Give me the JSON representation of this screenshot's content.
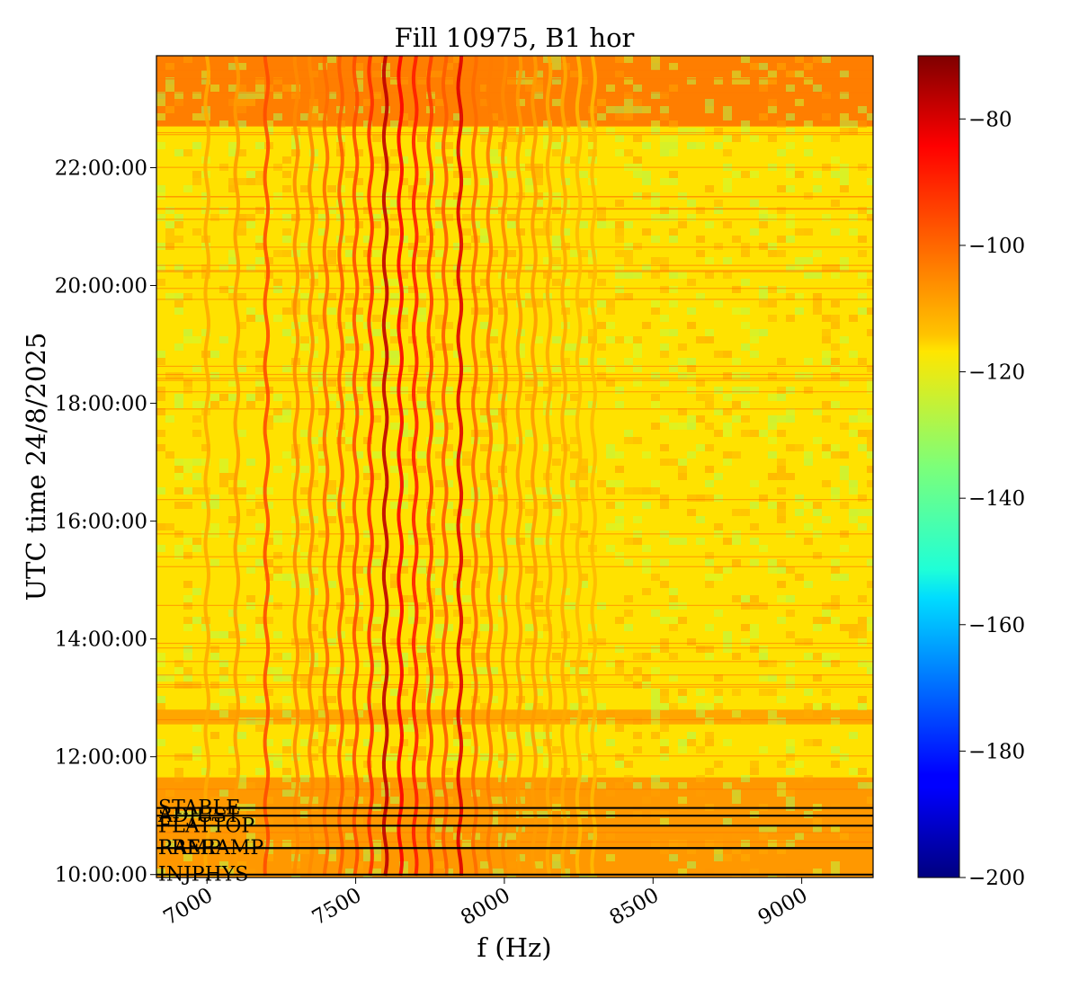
{
  "chart_data": {
    "type": "heatmap",
    "title": "Fill 10975, B1 hor",
    "xlabel": "f (Hz)",
    "ylabel": "UTC time 24/8/2025",
    "xlim": [
      6830,
      9240
    ],
    "ylim_hours": [
      9.95,
      23.9
    ],
    "x_ticks": [
      {
        "value": 7000,
        "label": "7000"
      },
      {
        "value": 7500,
        "label": "7500"
      },
      {
        "value": 8000,
        "label": "8000"
      },
      {
        "value": 8500,
        "label": "8500"
      },
      {
        "value": 9000,
        "label": "9000"
      }
    ],
    "y_ticks": [
      {
        "value": 10,
        "label": "10:00:00"
      },
      {
        "value": 12,
        "label": "12:00:00"
      },
      {
        "value": 14,
        "label": "14:00:00"
      },
      {
        "value": 16,
        "label": "16:00:00"
      },
      {
        "value": 18,
        "label": "18:00:00"
      },
      {
        "value": 20,
        "label": "20:00:00"
      },
      {
        "value": 22,
        "label": "22:00:00"
      }
    ],
    "colorbar": {
      "colormap": "jet",
      "range": [
        -200,
        -70
      ],
      "ticks": [
        {
          "value": -80,
          "label": "−80"
        },
        {
          "value": -100,
          "label": "−100"
        },
        {
          "value": -120,
          "label": "−120"
        },
        {
          "value": -140,
          "label": "−140"
        },
        {
          "value": -160,
          "label": "−160"
        },
        {
          "value": -180,
          "label": "−180"
        },
        {
          "value": -200,
          "label": "−200"
        }
      ]
    },
    "background_level_dB": -115,
    "spectral_lines": [
      {
        "freq": 7600,
        "level": -78
      },
      {
        "freq": 7850,
        "level": -82
      },
      {
        "freq": 7650,
        "level": -86
      },
      {
        "freq": 7700,
        "level": -90
      },
      {
        "freq": 7550,
        "level": -92
      },
      {
        "freq": 7750,
        "level": -94
      },
      {
        "freq": 7500,
        "level": -96
      },
      {
        "freq": 7450,
        "level": -98
      },
      {
        "freq": 7400,
        "level": -100
      },
      {
        "freq": 7200,
        "level": -96
      },
      {
        "freq": 7800,
        "level": -98
      },
      {
        "freq": 7900,
        "level": -100
      },
      {
        "freq": 7950,
        "level": -102
      },
      {
        "freq": 8000,
        "level": -104
      },
      {
        "freq": 8050,
        "level": -106
      },
      {
        "freq": 8100,
        "level": -106
      },
      {
        "freq": 8150,
        "level": -108
      },
      {
        "freq": 8200,
        "level": -108
      },
      {
        "freq": 8250,
        "level": -110
      },
      {
        "freq": 8300,
        "level": -110
      },
      {
        "freq": 7300,
        "level": -104
      },
      {
        "freq": 7350,
        "level": -104
      },
      {
        "freq": 7100,
        "level": -106
      },
      {
        "freq": 7000,
        "level": -108
      }
    ],
    "high_noise_bands": [
      {
        "from": 22.7,
        "to": 23.9,
        "level": -100
      },
      {
        "from": 9.95,
        "to": 11.65,
        "level": -104
      },
      {
        "from": 12.55,
        "to": 12.8,
        "level": -106
      }
    ],
    "beam_modes": [
      {
        "label": "INJPHYS",
        "time": 10.0
      },
      {
        "label": "PRERAMP",
        "time": 10.45
      },
      {
        "label": "RAMP",
        "time": 10.45
      },
      {
        "label": "FLATTOP",
        "time": 10.83
      },
      {
        "label": "ADJUST",
        "time": 11.0
      },
      {
        "label": "STABLE",
        "time": 11.13
      }
    ]
  }
}
